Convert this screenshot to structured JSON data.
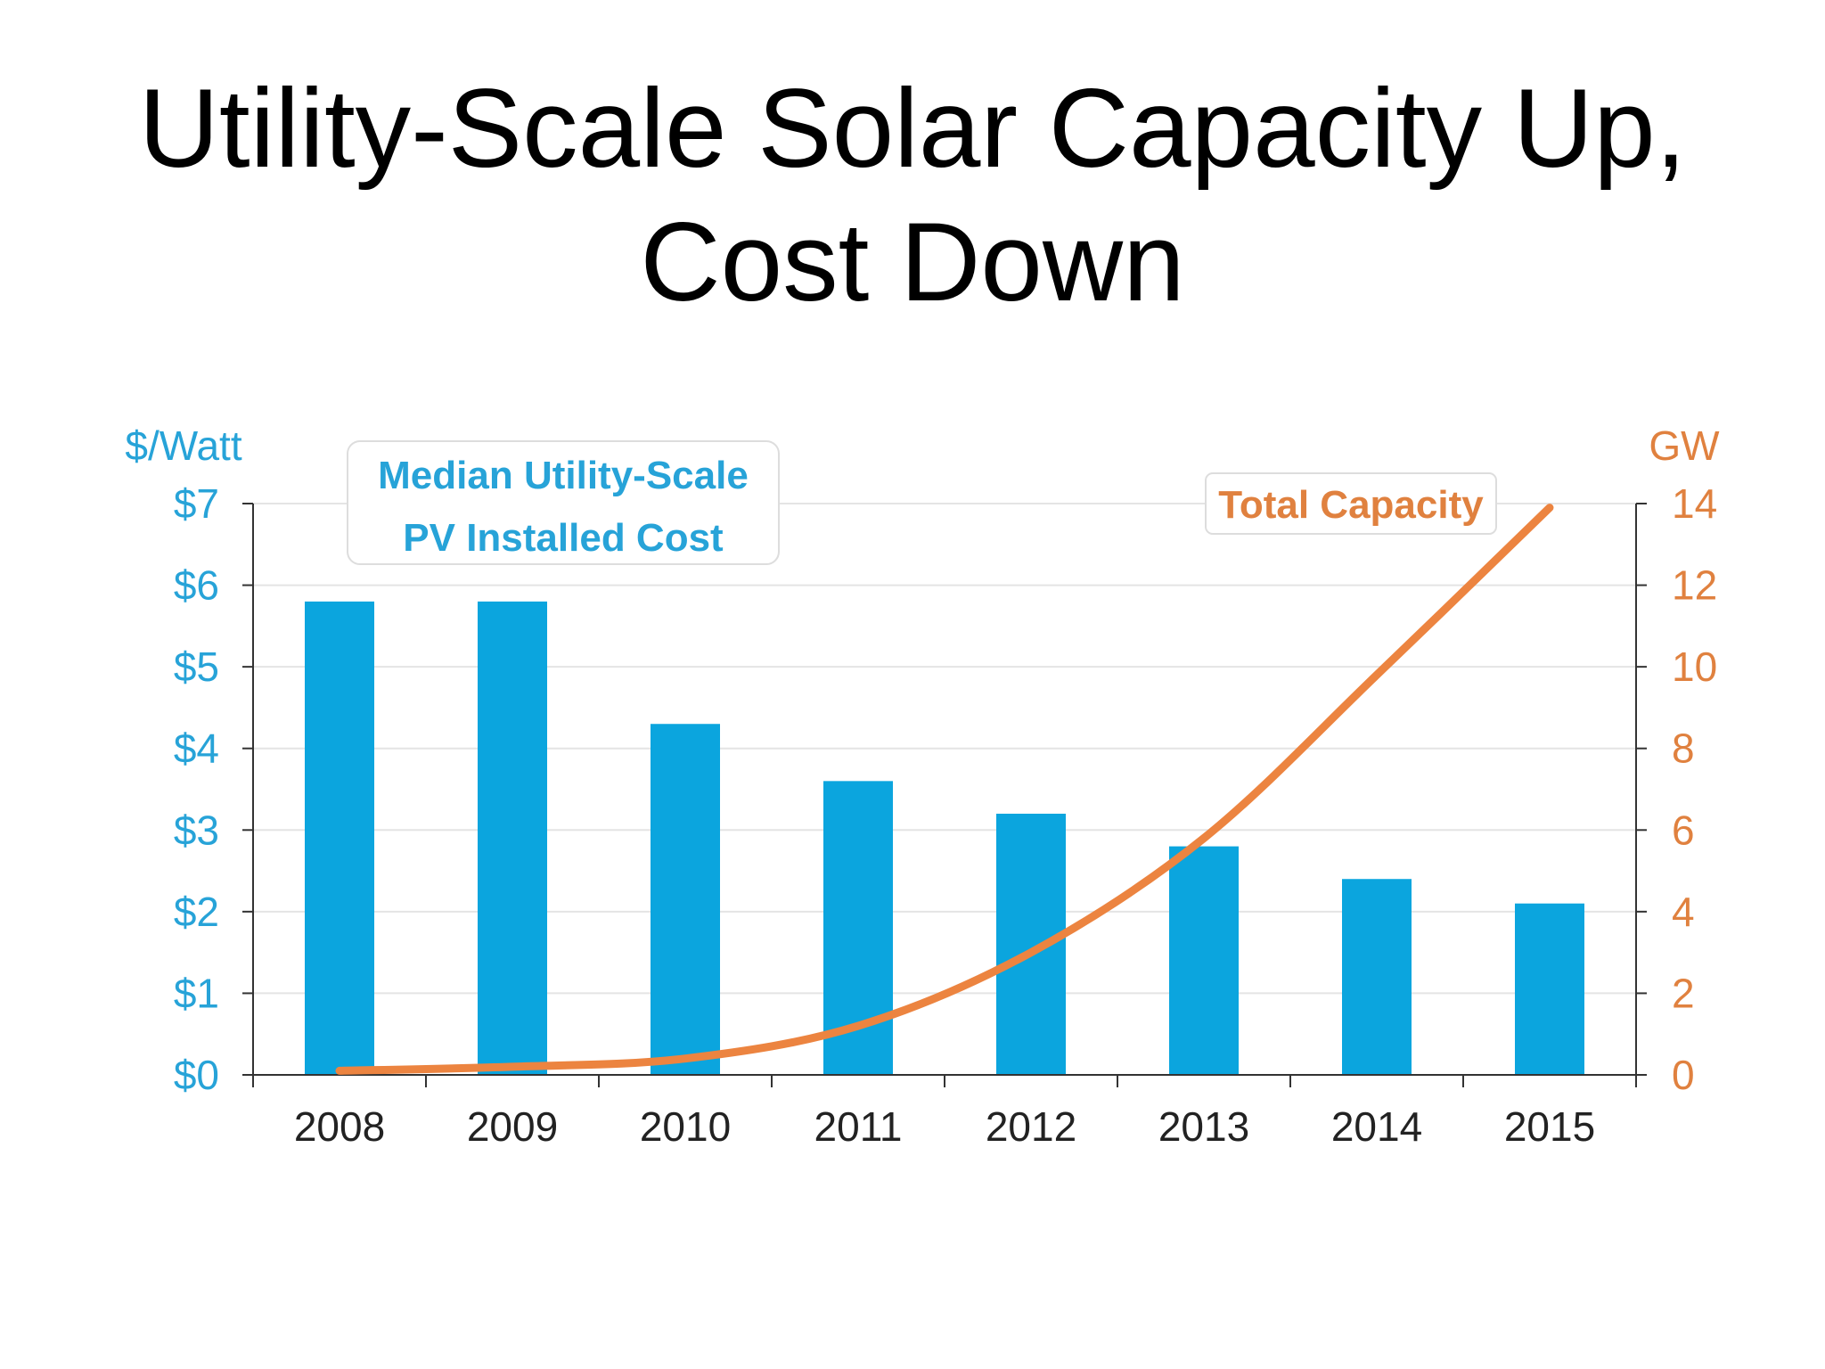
{
  "slide": {
    "title_line1": "Utility-Scale Solar Capacity Up,",
    "title_line2": "Cost Down"
  },
  "chart_data": {
    "type": "bar",
    "categories": [
      "2008",
      "2009",
      "2010",
      "2011",
      "2012",
      "2013",
      "2014",
      "2015"
    ],
    "series": [
      {
        "name": "Median Utility-Scale PV Installed Cost",
        "type": "bar",
        "axis": "left",
        "color": "#0BA5DE",
        "values": [
          5.8,
          5.8,
          4.3,
          3.6,
          3.2,
          2.8,
          2.4,
          2.1
        ]
      },
      {
        "name": "Total Capacity",
        "type": "line",
        "axis": "right",
        "color": "#EC8440",
        "values": [
          0.1,
          0.2,
          0.4,
          1.2,
          3.0,
          5.8,
          9.8,
          13.9
        ]
      }
    ],
    "left_axis": {
      "label": "$/Watt",
      "range": [
        0,
        7
      ],
      "ticks": [
        0,
        1,
        2,
        3,
        4,
        5,
        6,
        7
      ],
      "tick_labels": [
        "$0",
        "$1",
        "$2",
        "$3",
        "$4",
        "$5",
        "$6",
        "$7"
      ],
      "color": "#27A3D8"
    },
    "right_axis": {
      "label": "GW",
      "range": [
        0,
        14
      ],
      "ticks": [
        0,
        2,
        4,
        6,
        8,
        10,
        12,
        14
      ],
      "tick_labels": [
        "0",
        "2",
        "4",
        "6",
        "8",
        "10",
        "12",
        "14"
      ],
      "color": "#E0813F"
    },
    "legend": [
      {
        "series": "Median Utility-Scale PV Installed Cost",
        "lines": [
          "Median Utility-Scale",
          "PV Installed Cost"
        ],
        "placement": "top-left",
        "color": "#27A3D8"
      },
      {
        "series": "Total Capacity",
        "lines": [
          "Total Capacity"
        ],
        "placement": "top-right",
        "color": "#E0813F"
      }
    ],
    "grid": true,
    "grid_color": "#E4E4E4",
    "axis_color": "#333333",
    "category_label_color": "#222222"
  }
}
